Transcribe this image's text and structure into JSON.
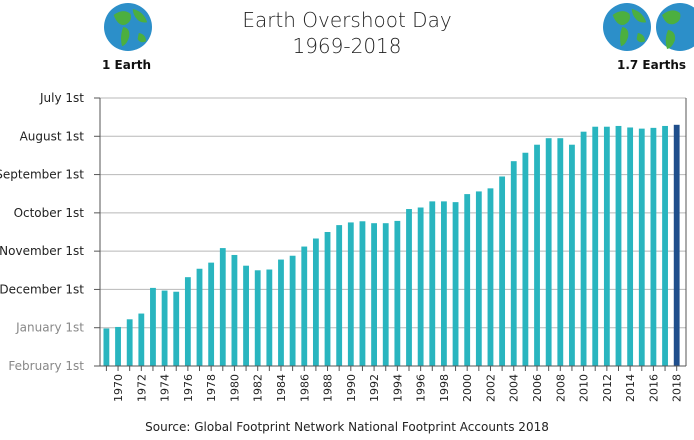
{
  "header": {
    "title_line1": "Earth Overshoot Day",
    "title_line2": "1969-2018",
    "left_badge": "1 Earth",
    "right_badge": "1.7 Earths"
  },
  "source": "Source: Global Footprint Network National Footprint Accounts 2018",
  "colors": {
    "bar": "#29b5bf",
    "last_bar": "#1f4e8c",
    "grid": "#b8b8b8",
    "axis_text": "#222222",
    "axis_text_faded": "#888888",
    "ocean": "#2c8fc9",
    "land": "#4caf3f"
  },
  "icons": [
    "earth-globe-icon"
  ],
  "chart_data": {
    "type": "bar",
    "x": [
      1969,
      1970,
      1971,
      1972,
      1973,
      1974,
      1975,
      1976,
      1977,
      1978,
      1979,
      1980,
      1981,
      1982,
      1983,
      1984,
      1985,
      1986,
      1987,
      1988,
      1989,
      1990,
      1991,
      1992,
      1993,
      1994,
      1995,
      1996,
      1997,
      1998,
      1999,
      2000,
      2001,
      2002,
      2003,
      2004,
      2005,
      2006,
      2007,
      2008,
      2009,
      2010,
      2011,
      2012,
      2013,
      2014,
      2015,
      2016,
      2017,
      2018
    ],
    "x_tick_labels": [
      "1970",
      "1972",
      "1974",
      "1976",
      "1978",
      "1980",
      "1982",
      "1984",
      "1986",
      "1988",
      "1990",
      "1992",
      "1994",
      "1996",
      "1998",
      "2000",
      "2002",
      "2004",
      "2006",
      "2008",
      "2010",
      "2012",
      "2014",
      "2016",
      "2018"
    ],
    "y_tick_labels": [
      "July 1st",
      "August 1st",
      "September 1st",
      "October 1st",
      "November 1st",
      "December 1st",
      "January 1st",
      "February 1st"
    ],
    "y_axis_note": "Values are months before February 1st of the following year (0 = February 1st, 7 = July 1st).",
    "values": [
      0.98,
      1.02,
      1.22,
      1.37,
      2.04,
      1.97,
      1.94,
      2.32,
      2.54,
      2.7,
      3.08,
      2.9,
      2.62,
      2.5,
      2.52,
      2.78,
      2.88,
      3.12,
      3.33,
      3.5,
      3.68,
      3.75,
      3.78,
      3.73,
      3.73,
      3.79,
      4.1,
      4.14,
      4.3,
      4.3,
      4.28,
      4.49,
      4.56,
      4.64,
      4.95,
      5.35,
      5.57,
      5.78,
      5.95,
      5.95,
      5.78,
      6.12,
      6.25,
      6.25,
      6.27,
      6.23,
      6.2,
      6.22,
      6.27,
      6.3
    ],
    "ylim": [
      0,
      7
    ],
    "grid": true,
    "highlight_last": true
  }
}
